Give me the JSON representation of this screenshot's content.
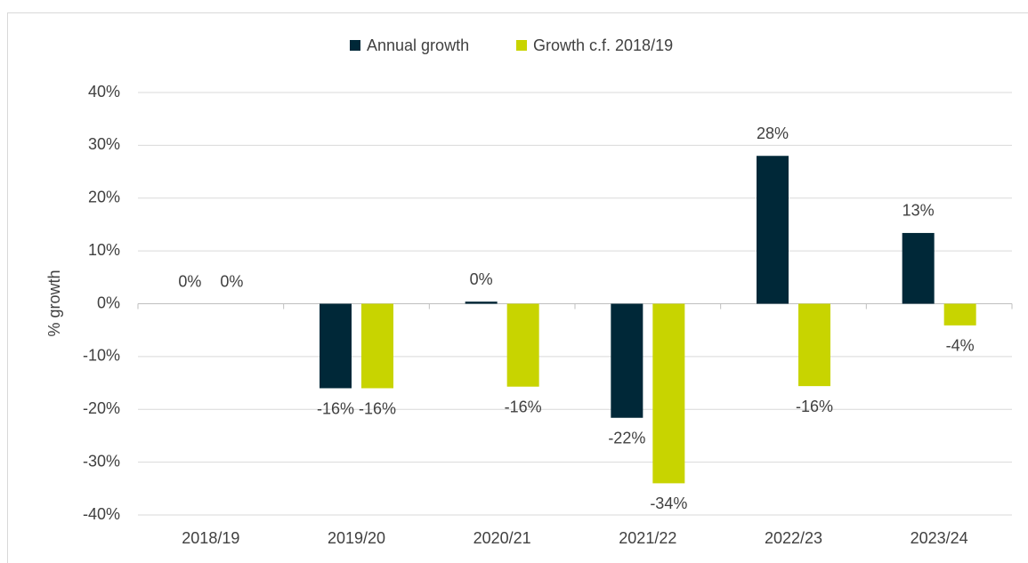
{
  "chart_data": {
    "type": "bar",
    "y_label": "% growth",
    "categories": [
      "2018/19",
      "2019/20",
      "2020/21",
      "2021/22",
      "2022/23",
      "2023/24"
    ],
    "series": [
      {
        "name": "Annual growth",
        "color": "#002838",
        "values": [
          0,
          -16,
          0.4,
          -21.6,
          28,
          13.4
        ],
        "value_labels": [
          "0%",
          "-16%",
          "0%",
          "-22%",
          "28%",
          "13%"
        ]
      },
      {
        "name": "Growth c.f. 2018/19",
        "color": "#c8d400",
        "values": [
          0,
          -16,
          -15.7,
          -34,
          -15.6,
          -4.1
        ],
        "value_labels": [
          "0%",
          "-16%",
          "-16%",
          "-34%",
          "-16%",
          "-4%"
        ]
      }
    ],
    "ylim": [
      -40,
      40
    ],
    "yticks": [
      {
        "value": -40,
        "label": "-40%"
      },
      {
        "value": -30,
        "label": "-30%"
      },
      {
        "value": -20,
        "label": "-20%"
      },
      {
        "value": -10,
        "label": "-10%"
      },
      {
        "value": 0,
        "label": "0%"
      },
      {
        "value": 10,
        "label": "10%"
      },
      {
        "value": 20,
        "label": "20%"
      },
      {
        "value": 30,
        "label": "30%"
      },
      {
        "value": 40,
        "label": "40%"
      }
    ],
    "grid": true,
    "legend": "top"
  }
}
